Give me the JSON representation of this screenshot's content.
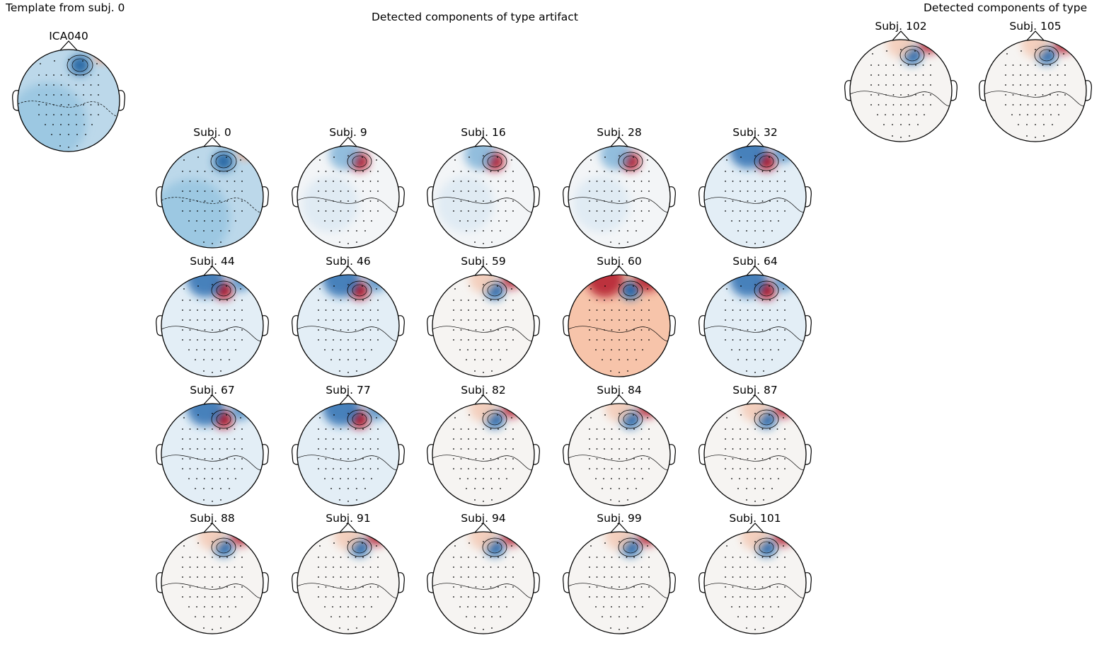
{
  "figures": {
    "template_title": "Template from subj. 0",
    "detected_title": "Detected components of type artifact",
    "detected_title_2": "Detected components of type"
  },
  "template": {
    "label": "ICA040",
    "variant": "template"
  },
  "colormap": {
    "name": "RdBu_r",
    "negative": "#2166ac",
    "positive": "#b2182b",
    "neutral": "#f7f7f7"
  },
  "panels": [
    {
      "label": "Subj. 0",
      "variant": "template"
    },
    {
      "label": "Subj. 9",
      "variant": "posfocus"
    },
    {
      "label": "Subj. 16",
      "variant": "posfocus"
    },
    {
      "label": "Subj. 28",
      "variant": "posfocus"
    },
    {
      "label": "Subj. 32",
      "variant": "posfocus_bluetop"
    },
    {
      "label": "Subj. 44",
      "variant": "posfocus_bluetop"
    },
    {
      "label": "Subj. 46",
      "variant": "posfocus_bluetop"
    },
    {
      "label": "Subj. 59",
      "variant": "negfocus"
    },
    {
      "label": "Subj. 60",
      "variant": "negfocus_red"
    },
    {
      "label": "Subj. 64",
      "variant": "posfocus_bluetop"
    },
    {
      "label": "Subj. 67",
      "variant": "posfocus_bluetop"
    },
    {
      "label": "Subj. 77",
      "variant": "posfocus_bluetop"
    },
    {
      "label": "Subj. 82",
      "variant": "negfocus"
    },
    {
      "label": "Subj. 84",
      "variant": "negfocus"
    },
    {
      "label": "Subj. 87",
      "variant": "negfocus"
    },
    {
      "label": "Subj. 88",
      "variant": "negfocus"
    },
    {
      "label": "Subj. 91",
      "variant": "negfocus"
    },
    {
      "label": "Subj. 94",
      "variant": "negfocus"
    },
    {
      "label": "Subj. 99",
      "variant": "negfocus"
    },
    {
      "label": "Subj. 101",
      "variant": "negfocus"
    },
    {
      "label": "Subj. 102",
      "variant": "negfocus"
    },
    {
      "label": "Subj. 105",
      "variant": "negfocus"
    }
  ]
}
